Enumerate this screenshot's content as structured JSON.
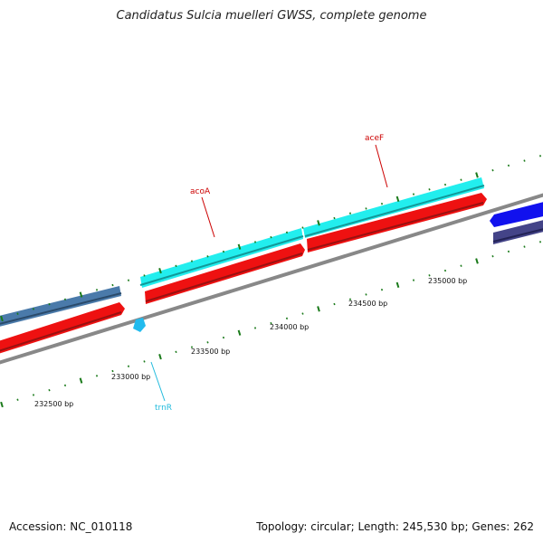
{
  "title": "Candidatus Sulcia muelleri GWSS, complete genome",
  "accession": "Accession: NC_010118",
  "summary": "Topology: circular; Length: 245,530 bp; Genes: 262",
  "ruler": {
    "labels": [
      "232500 bp",
      "233000 bp",
      "233500 bp",
      "234000 bp",
      "234500 bp",
      "235000 bp"
    ]
  },
  "genes": [
    {
      "name": "acoA",
      "color": "#cc0000"
    },
    {
      "name": "aceF",
      "color": "#cc0000"
    },
    {
      "name": "trnR",
      "color": "#22bbdd"
    }
  ],
  "colors": {
    "backbone": "#808080",
    "tick": "#1a7a1a",
    "cds_red": "#ee1111",
    "cyan": "#22eeee",
    "steel_blue": "#4a7aaa",
    "blue": "#1111ee",
    "slate": "#444488",
    "trna": "#22bbee"
  }
}
